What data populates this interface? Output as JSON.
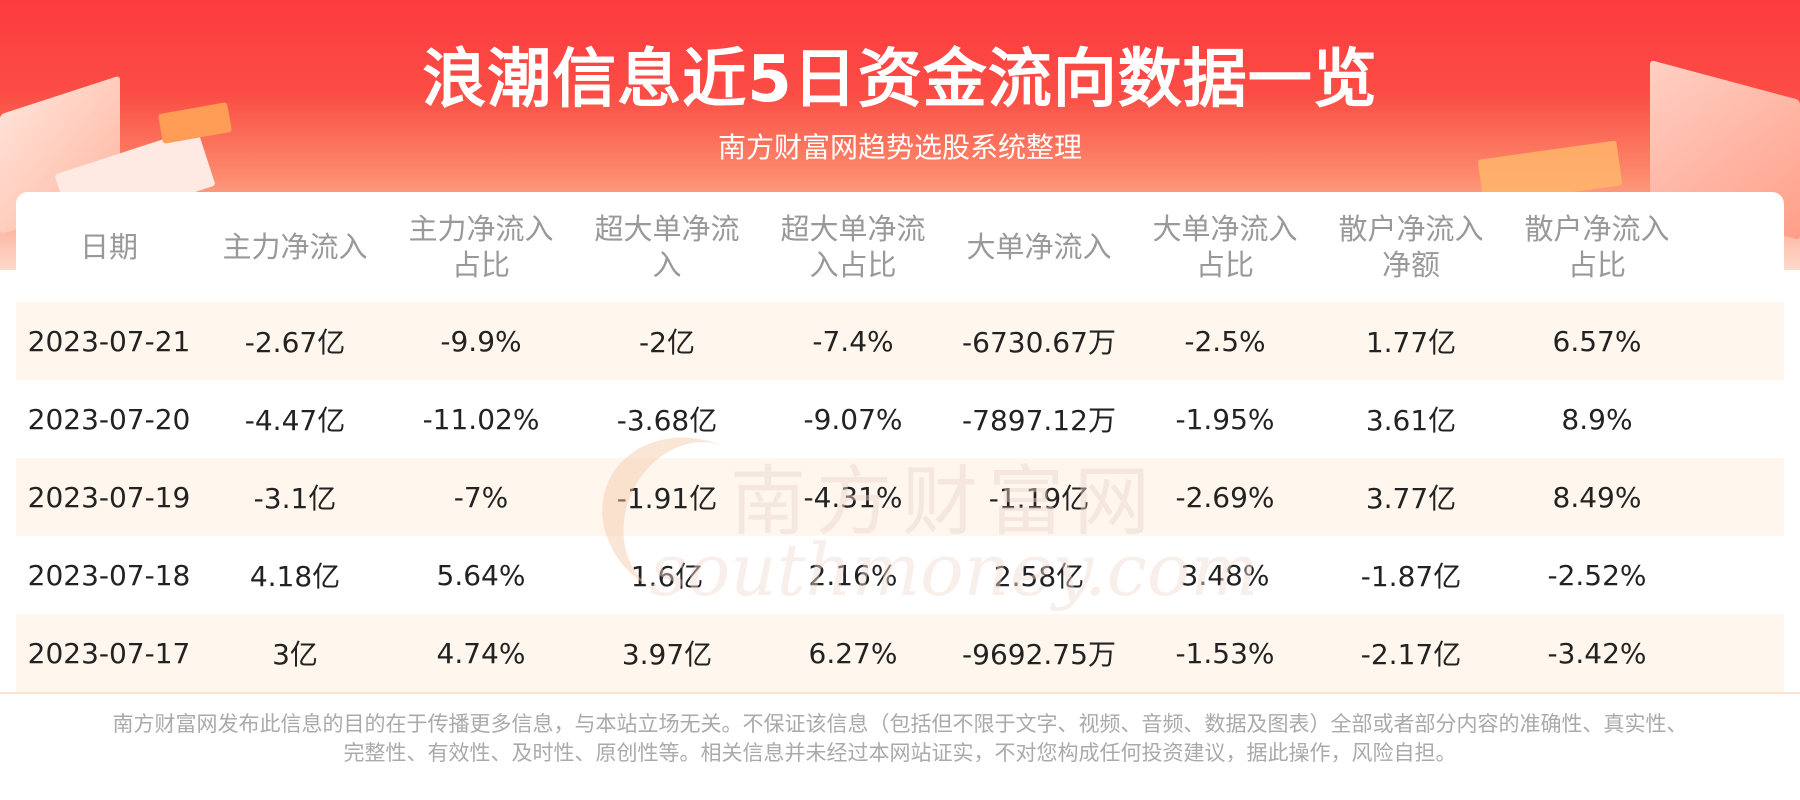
{
  "header": {
    "title": "浪潮信息近5日资金流向数据一览",
    "subtitle": "南方财富网趋势选股系统整理"
  },
  "table": {
    "columns": [
      "日期",
      "主力净流入",
      "主力净流入\n占比",
      "超大单净流\n入",
      "超大单净流\n入占比",
      "大单净流入",
      "大单净流入\n占比",
      "散户净流入\n净额",
      "散户净流入\n占比"
    ],
    "rows": [
      [
        "2023-07-21",
        "-2.67亿",
        "-9.9%",
        "-2亿",
        "-7.4%",
        "-6730.67万",
        "-2.5%",
        "1.77亿",
        "6.57%"
      ],
      [
        "2023-07-20",
        "-4.47亿",
        "-11.02%",
        "-3.68亿",
        "-9.07%",
        "-7897.12万",
        "-1.95%",
        "3.61亿",
        "8.9%"
      ],
      [
        "2023-07-19",
        "-3.1亿",
        "-7%",
        "-1.91亿",
        "-4.31%",
        "-1.19亿",
        "-2.69%",
        "3.77亿",
        "8.49%"
      ],
      [
        "2023-07-18",
        "4.18亿",
        "5.64%",
        "1.6亿",
        "2.16%",
        "2.58亿",
        "3.48%",
        "-1.87亿",
        "-2.52%"
      ],
      [
        "2023-07-17",
        "3亿",
        "4.74%",
        "3.97亿",
        "6.27%",
        "-9692.75万",
        "-1.53%",
        "-2.17亿",
        "-3.42%"
      ]
    ]
  },
  "watermark": {
    "cn": "南方财富网",
    "en": "southmoney.com"
  },
  "footer": {
    "line1": "南方财富网发布此信息的目的在于传播更多信息，与本站立场无关。不保证该信息（包括但不限于文字、视频、音频、数据及图表）全部或者部分内容的准确性、真实性、",
    "line2": "完整性、有效性、及时性、原创性等。相关信息并未经过本网站证实，不对您构成任何投资建议，据此操作，风险自担。"
  },
  "colors": {
    "banner": "#fd3a3f",
    "row_shade": "#fff6ee",
    "header_text": "#999999",
    "cell_text": "#222222"
  }
}
